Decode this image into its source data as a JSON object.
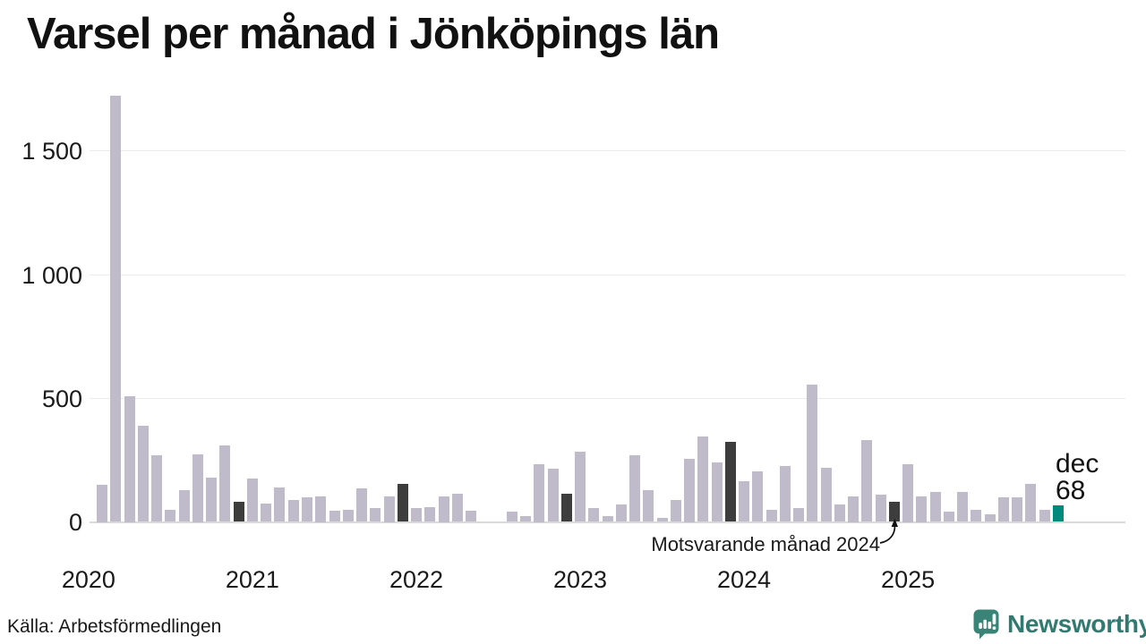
{
  "title": "Varsel per månad i Jönköpings län",
  "source": "Källa: Arbetsförmedlingen",
  "annotation": {
    "text": "Motsvarande månad 2024"
  },
  "last_point_label": {
    "month": "dec",
    "value": "68"
  },
  "branding": {
    "name": "Newsworthy"
  },
  "colors": {
    "bar": "#bfbbcb",
    "december_bar": "#3d3d3d",
    "current_bar": "#00897d",
    "grid": "#ebebeb",
    "axis_line": "#d9d9d9",
    "text": "#1a1a1a",
    "brand_text": "#317a6f",
    "brand_icon": "#3a8477"
  },
  "chart_data": {
    "type": "bar",
    "title": "Varsel per månad i Jönköpings län",
    "xlabel": "",
    "ylabel": "",
    "x_start": "2020-01",
    "x_end": "2025-12",
    "ylim": [
      0,
      1750
    ],
    "grid": true,
    "yticks": [
      0,
      500,
      1000,
      1500
    ],
    "ytick_labels": [
      "0",
      "500",
      "1 000",
      "1 500"
    ],
    "year_labels": [
      "2020",
      "2021",
      "2022",
      "2023",
      "2024",
      "2025"
    ],
    "series_name": "Varsel per månad",
    "values": [
      null,
      150,
      1725,
      510,
      390,
      270,
      50,
      130,
      275,
      180,
      310,
      80,
      175,
      75,
      140,
      90,
      100,
      105,
      45,
      50,
      135,
      55,
      105,
      155,
      55,
      60,
      105,
      115,
      45,
      0,
      0,
      40,
      25,
      235,
      215,
      115,
      285,
      55,
      25,
      70,
      270,
      130,
      15,
      90,
      255,
      345,
      240,
      325,
      165,
      205,
      50,
      225,
      55,
      555,
      220,
      70,
      105,
      330,
      110,
      80,
      235,
      105,
      120,
      40,
      120,
      50,
      30,
      100,
      100,
      155,
      50,
      68
    ],
    "december_indices": [
      11,
      23,
      35,
      47,
      59
    ],
    "current_month_index": 71,
    "annotation_target": "2024-12",
    "annotation_target_value": 80,
    "legend": "none"
  }
}
